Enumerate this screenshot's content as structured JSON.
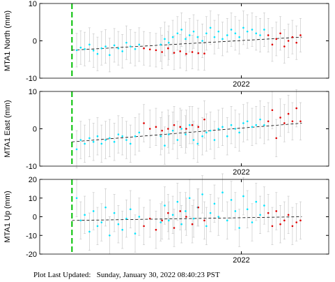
{
  "chart_data": [
    {
      "type": "scatter",
      "ylabel": "MTA1 North (mm)",
      "xlim": [
        2021.7,
        2022.13
      ],
      "xticks": [
        2022
      ],
      "ylim": [
        -10,
        10
      ],
      "yticks": [
        -10,
        0,
        10
      ],
      "reference_x": 2021.748,
      "reference_color": "#00c000",
      "trend": {
        "x": [
          2021.748,
          2022.09
        ],
        "values": [
          -2.5,
          1
        ],
        "color": "#000000"
      },
      "series": [
        {
          "color": "#00e5ff",
          "error": 4.5,
          "x": [
            2021.755,
            2021.761,
            2021.767,
            2021.774,
            2021.78,
            2021.786,
            2021.792,
            2021.798,
            2021.804,
            2021.811,
            2021.817,
            2021.823,
            2021.829,
            2021.835,
            2021.842,
            2021.848,
            2021.88,
            2021.886,
            2021.892,
            2021.898,
            2021.905,
            2021.911,
            2021.917,
            2021.923,
            2021.929,
            2021.935,
            2021.942,
            2021.948,
            2021.954,
            2021.96,
            2021.966,
            2021.972,
            2021.979,
            2021.985,
            2021.991,
            2021.997,
            2022.003,
            2022.009,
            2022.016,
            2022.022,
            2022.028,
            2022.034
          ],
          "values": [
            -2.5,
            -1.8,
            -2.2,
            -1,
            -2.6,
            -3.5,
            -2,
            -1.5,
            -3.8,
            -1.2,
            -2,
            -2.8,
            -0.5,
            -1.5,
            -2.2,
            -1,
            -1,
            0.5,
            -0.5,
            1,
            2,
            3,
            0.5,
            1.5,
            2.5,
            1,
            0,
            2,
            3.5,
            1,
            2.5,
            0.5,
            1.5,
            3,
            2,
            1,
            3.5,
            2.5,
            3,
            2,
            1.5,
            3
          ]
        },
        {
          "color": "#e00000",
          "error": 4.5,
          "x": [
            2021.855,
            2021.864,
            2021.873,
            2021.882,
            2021.891,
            2021.9,
            2021.909,
            2021.918,
            2021.927,
            2021.936,
            2021.945,
            2022.04,
            2022.046,
            2022.052,
            2022.058,
            2022.064,
            2022.07,
            2022.076,
            2022.082,
            2022.088
          ],
          "values": [
            -2,
            -2.3,
            -2.5,
            -3,
            -2,
            -3.2,
            -2.8,
            -3.5,
            -3,
            -3.3,
            -3.4,
            1.5,
            -1,
            0.5,
            2,
            -1.5,
            0,
            1,
            -0.5,
            1.5
          ]
        }
      ]
    },
    {
      "type": "scatter",
      "ylabel": "MTA1 East (mm)",
      "xlim": [
        2021.7,
        2022.13
      ],
      "xticks": [
        2022
      ],
      "ylim": [
        -10,
        10
      ],
      "yticks": [
        -10,
        0,
        10
      ],
      "reference_x": 2021.748,
      "reference_color": "#00c000",
      "trend": {
        "x": [
          2021.748,
          2022.09
        ],
        "values": [
          -3.5,
          1.5
        ],
        "color": "#000000"
      },
      "series": [
        {
          "color": "#00e5ff",
          "error": 5,
          "x": [
            2021.755,
            2021.761,
            2021.767,
            2021.774,
            2021.78,
            2021.786,
            2021.792,
            2021.798,
            2021.804,
            2021.811,
            2021.817,
            2021.823,
            2021.829,
            2021.835,
            2021.842,
            2021.848,
            2021.88,
            2021.886,
            2021.892,
            2021.898,
            2021.905,
            2021.911,
            2021.917,
            2021.923,
            2021.929,
            2021.935,
            2021.942,
            2021.948,
            2021.954,
            2021.96,
            2021.966,
            2021.972,
            2021.979,
            2021.985,
            2021.991,
            2021.997,
            2022.003,
            2022.009,
            2022.016,
            2022.022,
            2022.028,
            2022.034
          ],
          "values": [
            -5.5,
            -3,
            -4,
            -2.5,
            -3.5,
            -2,
            -4,
            -3,
            -2.5,
            -3.5,
            -1.5,
            -2,
            -3,
            -4,
            -2,
            -1,
            -2,
            -4.5,
            -1.5,
            -0.5,
            -3,
            0,
            -1.5,
            1,
            -3,
            -4,
            -2,
            -1,
            -0.5,
            -3,
            0,
            0.5,
            -2,
            1,
            0,
            -1,
            1.5,
            2,
            0.5,
            1,
            2.5,
            1
          ]
        },
        {
          "color": "#e00000",
          "error": 5,
          "x": [
            2021.855,
            2021.864,
            2021.873,
            2021.882,
            2021.891,
            2021.9,
            2021.909,
            2021.918,
            2021.927,
            2021.936,
            2021.945,
            2022.04,
            2022.046,
            2022.052,
            2022.058,
            2022.064,
            2022.07,
            2022.076,
            2022.082,
            2022.088
          ],
          "values": [
            1.5,
            0,
            0.5,
            -0.5,
            0,
            1,
            0.5,
            0,
            1,
            0.5,
            2.5,
            2,
            5,
            -2.5,
            3,
            1.5,
            4,
            2,
            5.5,
            2
          ]
        }
      ]
    },
    {
      "type": "scatter",
      "ylabel": "MTA1 Up (mm)",
      "xlim": [
        2021.7,
        2022.13
      ],
      "xticks": [
        2022
      ],
      "ylim": [
        -20,
        20
      ],
      "yticks": [
        -20,
        -10,
        0,
        10,
        20
      ],
      "reference_x": 2021.748,
      "reference_color": "#00c000",
      "trend": {
        "x": [
          2021.748,
          2022.09
        ],
        "values": [
          -2,
          0
        ],
        "color": "#000000"
      },
      "series": [
        {
          "color": "#00e5ff",
          "error": 10,
          "x": [
            2021.755,
            2021.761,
            2021.767,
            2021.774,
            2021.78,
            2021.786,
            2021.792,
            2021.798,
            2021.804,
            2021.811,
            2021.817,
            2021.823,
            2021.829,
            2021.835,
            2021.842,
            2021.848,
            2021.88,
            2021.886,
            2021.892,
            2021.898,
            2021.905,
            2021.911,
            2021.917,
            2021.923,
            2021.929,
            2021.935,
            2021.942,
            2021.948,
            2021.954,
            2021.96,
            2021.966,
            2021.972,
            2021.979,
            2021.985,
            2021.991,
            2021.997,
            2022.003,
            2022.009,
            2022.016,
            2022.022,
            2022.028,
            2022.034
          ],
          "values": [
            10,
            -2,
            1,
            -8,
            3,
            -5,
            -3,
            5,
            -10,
            2,
            -4,
            -7,
            -1,
            4,
            -9,
            0,
            -3,
            6,
            -2,
            1,
            8,
            -4,
            3,
            10,
            -1,
            5,
            12,
            -5,
            2,
            7,
            0,
            13,
            -2,
            9,
            3,
            -6,
            11,
            4,
            -3,
            8,
            1,
            6
          ]
        },
        {
          "color": "#e00000",
          "error": 10,
          "x": [
            2021.855,
            2021.864,
            2021.873,
            2021.882,
            2021.891,
            2021.9,
            2021.909,
            2021.918,
            2021.927,
            2021.936,
            2021.945,
            2022.04,
            2022.046,
            2022.052,
            2022.058,
            2022.064,
            2022.07,
            2022.076,
            2022.082,
            2022.088
          ],
          "values": [
            -5,
            -1,
            -7,
            -2,
            2,
            -6,
            3,
            0,
            -4,
            5,
            -2,
            2,
            -5,
            3,
            -4,
            -2,
            1,
            -5,
            -3,
            -2
          ]
        }
      ]
    }
  ],
  "footer": "Plot Last Updated:   Sunday, January 30, 2022 08:40:23 PST"
}
